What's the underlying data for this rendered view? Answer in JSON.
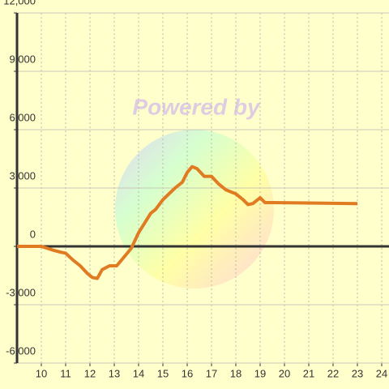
{
  "chart_data": {
    "type": "line",
    "watermark": "Powered by",
    "x": [
      9,
      10,
      10.5,
      10.8,
      11,
      11.3,
      11.6,
      11.9,
      12.1,
      12.3,
      12.5,
      12.8,
      13.1,
      13.5,
      13.7,
      14,
      14.5,
      14.7,
      15,
      15.5,
      15.8,
      16,
      16.2,
      16.4,
      16.7,
      17,
      17.3,
      17.6,
      18,
      18.3,
      18.5,
      18.7,
      19,
      19.2,
      19.5,
      23
    ],
    "series": [
      {
        "color": "#e07b22",
        "values": [
          0,
          0,
          -200,
          -300,
          -350,
          -700,
          -1000,
          -1400,
          -1600,
          -1650,
          -1200,
          -1000,
          -1000,
          -400,
          -100,
          700,
          1700,
          1900,
          2400,
          3000,
          3300,
          3800,
          4100,
          4000,
          3600,
          3600,
          3200,
          2900,
          2700,
          2400,
          2150,
          2200,
          2500,
          2250,
          2250,
          2200
        ]
      }
    ],
    "xlim": [
      9,
      24.3
    ],
    "xticks": [
      10,
      11,
      12,
      13,
      14,
      15,
      16,
      17,
      18,
      19,
      20,
      21,
      22,
      23,
      24
    ],
    "ylim": [
      -6000,
      12000
    ],
    "yticks": [
      {
        "value": -6000,
        "label": "-6,000"
      },
      {
        "value": -3000,
        "label": "-3,000"
      },
      0,
      {
        "value": 3000,
        "label": "3,000"
      },
      {
        "value": 6000,
        "label": "6,000"
      },
      {
        "value": 9000,
        "label": "9,000"
      },
      {
        "value": 12000,
        "label": "12,000"
      }
    ],
    "grid": true
  }
}
